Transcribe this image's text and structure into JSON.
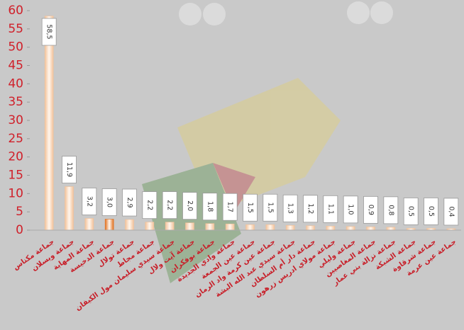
{
  "chart_data": {
    "type": "bar",
    "categories": [
      "جماعة مكناس",
      "جماعة ويسلان",
      "جماعة المهاية",
      "جماعة الدخيسة",
      "جماعة تولال",
      "جماعة مجاط",
      "جماعة سيدي سليمان مول الكيفان",
      "جماعة آيت ولال",
      "جماعة بوفكران",
      "جماعة وادي الجديدة",
      "جماعة عين الجمعة",
      "جماعة عين كرمة واد الرمان",
      "جماعة سيدي عبد الله البشة",
      "جماعة دار أم السلطان",
      "جماعة مولاي ادريس زرهون",
      "جماعة وليلي",
      "جماعة المغاصيين",
      "جماعة نزالة بني عمار",
      "جماعة الشبكة",
      "جماعة شرقاوة",
      "جماعة عين عرمة"
    ],
    "values": [
      58.5,
      11.9,
      3.2,
      3.0,
      2.9,
      2.2,
      2.2,
      2.0,
      1.8,
      1.7,
      1.5,
      1.5,
      1.3,
      1.2,
      1.1,
      1.0,
      0.9,
      0.8,
      0.5,
      0.5,
      0.4
    ],
    "value_labels": [
      "58,5",
      "11,9",
      "3,2",
      "3,0",
      "2,9",
      "2,2",
      "2,2",
      "2,0",
      "1,8",
      "1,7",
      "1,5",
      "1,5",
      "1,3",
      "1,2",
      "1,1",
      "1,0",
      "0,9",
      "0,8",
      "0,5",
      "0,5",
      "0,4"
    ],
    "colors": [
      "#f2c29a",
      "#f2c29a",
      "#f2c29a",
      "#e0701e",
      "#f2c29a",
      "#f2c29a",
      "#f2c29a",
      "#f2c29a",
      "#f2c29a",
      "#f2c29a",
      "#f2c29a",
      "#f2c29a",
      "#f2c29a",
      "#f2c29a",
      "#f2c29a",
      "#f2c29a",
      "#f2c29a",
      "#f2c29a",
      "#f2c29a",
      "#f2c29a",
      "#f2c29a"
    ],
    "ylim": [
      0,
      60
    ],
    "yticks": [
      0,
      5,
      10,
      15,
      20,
      25,
      30,
      35,
      40,
      45,
      50,
      55,
      60
    ]
  }
}
